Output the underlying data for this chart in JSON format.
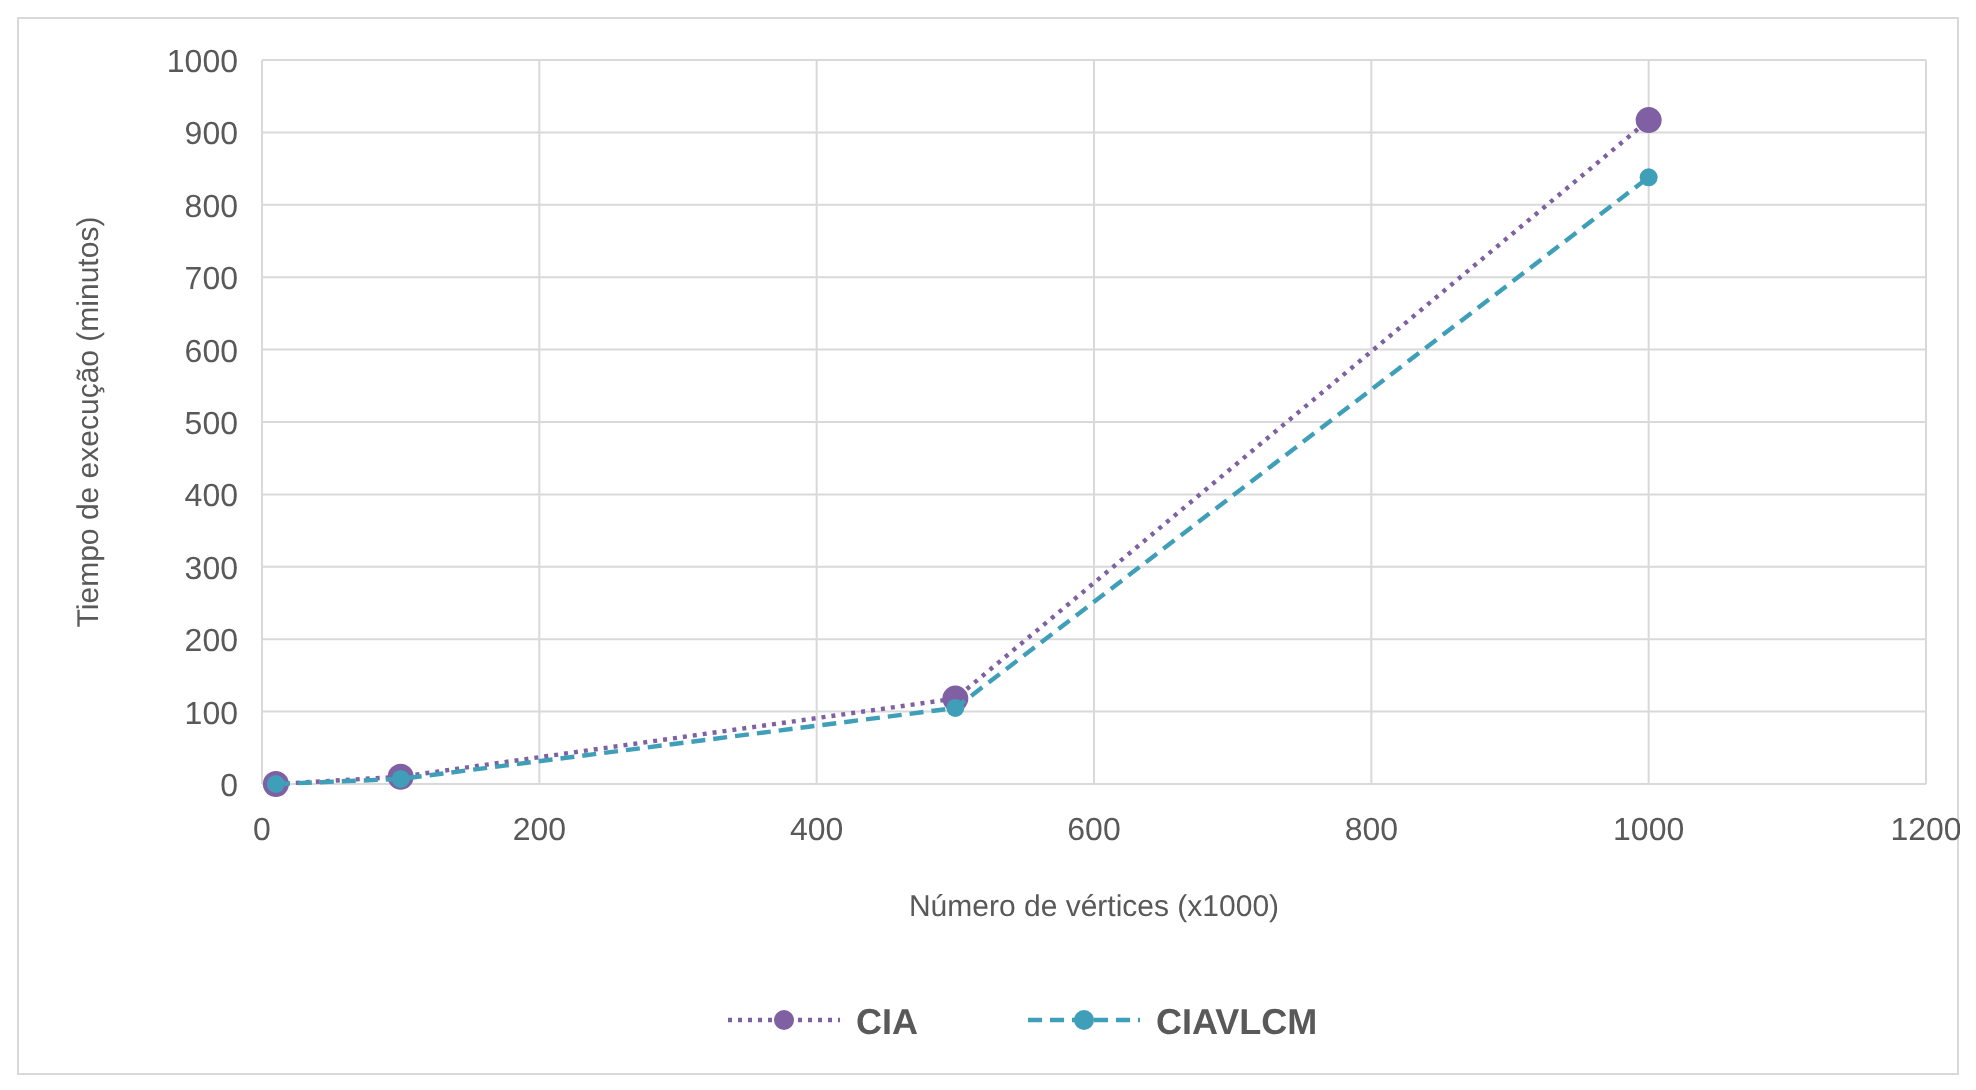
{
  "chart_data": {
    "type": "line",
    "xlabel": "Número  de vértices (x1000)",
    "ylabel": "Tiempo  de execução (minutos)",
    "x": [
      10,
      100,
      500,
      1000
    ],
    "series": [
      {
        "name": "CIA",
        "color": "#7f60a3",
        "values": [
          0,
          10,
          118,
          917
        ],
        "line_style": "dotted"
      },
      {
        "name": "CIAVLCM",
        "color": "#3f9fb8",
        "values": [
          0,
          7,
          105,
          838
        ],
        "line_style": "dashed"
      }
    ],
    "xlim": [
      0,
      1200
    ],
    "xticks": [
      0,
      200,
      400,
      600,
      800,
      1000,
      1200
    ],
    "ylim": [
      0,
      1000
    ],
    "yticks": [
      0,
      100,
      200,
      300,
      400,
      500,
      600,
      700,
      800,
      900,
      1000
    ],
    "grid": true,
    "legend": "bottom",
    "marker": "circle"
  }
}
